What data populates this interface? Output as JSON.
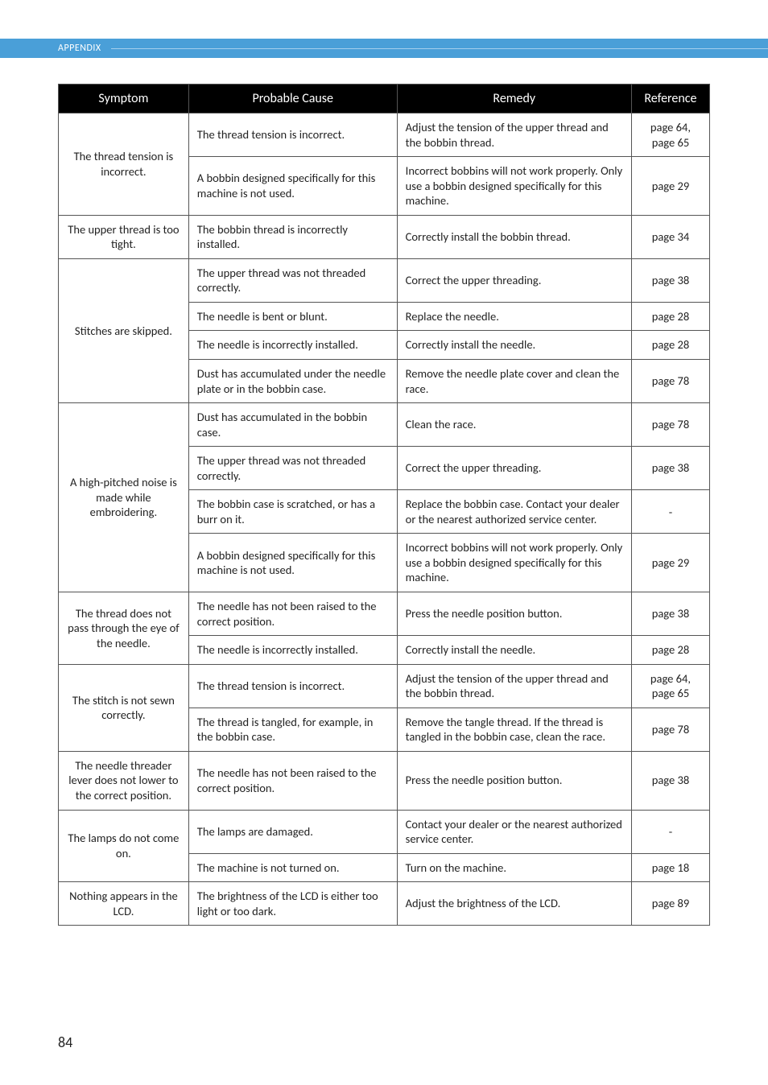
{
  "header": {
    "section_label": "APPENDIX"
  },
  "columns": {
    "symptom": "Symptom",
    "cause": "Probable Cause",
    "remedy": "Remedy",
    "reference": "Reference"
  },
  "groups": [
    {
      "symptom": "The thread tension is incorrect.",
      "rows": [
        {
          "cause": "The thread tension is incorrect.",
          "remedy": "Adjust the tension of the upper thread and the bobbin thread.",
          "reference": "page 64, page 65"
        },
        {
          "cause": "A bobbin designed specifically for this machine is not used.",
          "remedy": "Incorrect bobbins will not work properly. Only use a bobbin designed specifically for this machine.",
          "reference": "page 29"
        }
      ]
    },
    {
      "symptom": "The upper thread is too tight.",
      "rows": [
        {
          "cause": "The bobbin thread is incorrectly installed.",
          "remedy": "Correctly install the bobbin thread.",
          "reference": "page 34"
        }
      ]
    },
    {
      "symptom": "Stitches are skipped.",
      "rows": [
        {
          "cause": "The upper thread was not threaded correctly.",
          "remedy": "Correct the upper threading.",
          "reference": "page 38"
        },
        {
          "cause": "The needle is bent or blunt.",
          "remedy": "Replace the needle.",
          "reference": "page 28"
        },
        {
          "cause": "The needle is incorrectly installed.",
          "remedy": "Correctly install the needle.",
          "reference": "page 28"
        },
        {
          "cause": "Dust has accumulated under the needle plate or in the bobbin case.",
          "remedy": "Remove the needle plate cover and clean the race.",
          "reference": "page 78"
        }
      ]
    },
    {
      "symptom": "A high-pitched noise is made while embroidering.",
      "rows": [
        {
          "cause": "Dust has accumulated in the bobbin case.",
          "remedy": "Clean the race.",
          "reference": "page 78"
        },
        {
          "cause": "The upper thread was not threaded correctly.",
          "remedy": "Correct the upper threading.",
          "reference": "page 38"
        },
        {
          "cause": "The bobbin case is scratched, or has a burr on it.",
          "remedy": "Replace the bobbin case. Contact your dealer or the nearest authorized service center.",
          "reference": "-"
        },
        {
          "cause": "A bobbin designed specifically for this machine is not used.",
          "remedy": "Incorrect bobbins will not work properly. Only use a bobbin designed specifically for this machine.",
          "reference": "page 29"
        }
      ]
    },
    {
      "symptom": "The thread does not pass through the eye of the needle.",
      "rows": [
        {
          "cause": "The needle has not been raised to the correct position.",
          "remedy": "Press the needle position button.",
          "reference": "page 38"
        },
        {
          "cause": "The needle is incorrectly installed.",
          "remedy": "Correctly install the needle.",
          "reference": "page 28"
        }
      ]
    },
    {
      "symptom": "The stitch is not sewn correctly.",
      "rows": [
        {
          "cause": "The thread tension is incorrect.",
          "remedy": "Adjust the tension of the upper thread and the bobbin thread.",
          "reference": "page 64, page 65"
        },
        {
          "cause": "The thread is tangled, for example, in the bobbin case.",
          "remedy": "Remove the tangle thread. If the thread is tangled in the bobbin case, clean the race.",
          "reference": "page 78"
        }
      ]
    },
    {
      "symptom": "The needle threader lever does not lower to the correct position.",
      "rows": [
        {
          "cause": "The needle has not been raised to the correct position.",
          "remedy": "Press the needle position button.",
          "reference": "page 38"
        }
      ]
    },
    {
      "symptom": "The lamps do not come on.",
      "rows": [
        {
          "cause": "The lamps are damaged.",
          "remedy": "Contact your dealer or the nearest authorized service center.",
          "reference": "-"
        },
        {
          "cause": "The machine is not turned on.",
          "remedy": "Turn on the machine.",
          "reference": "page 18"
        }
      ]
    },
    {
      "symptom": "Nothing appears in the LCD.",
      "rows": [
        {
          "cause": "The brightness of the LCD is either too light or too dark.",
          "remedy": "Adjust the brightness of the LCD.",
          "reference": "page 89"
        }
      ]
    }
  ],
  "page_number": "84"
}
